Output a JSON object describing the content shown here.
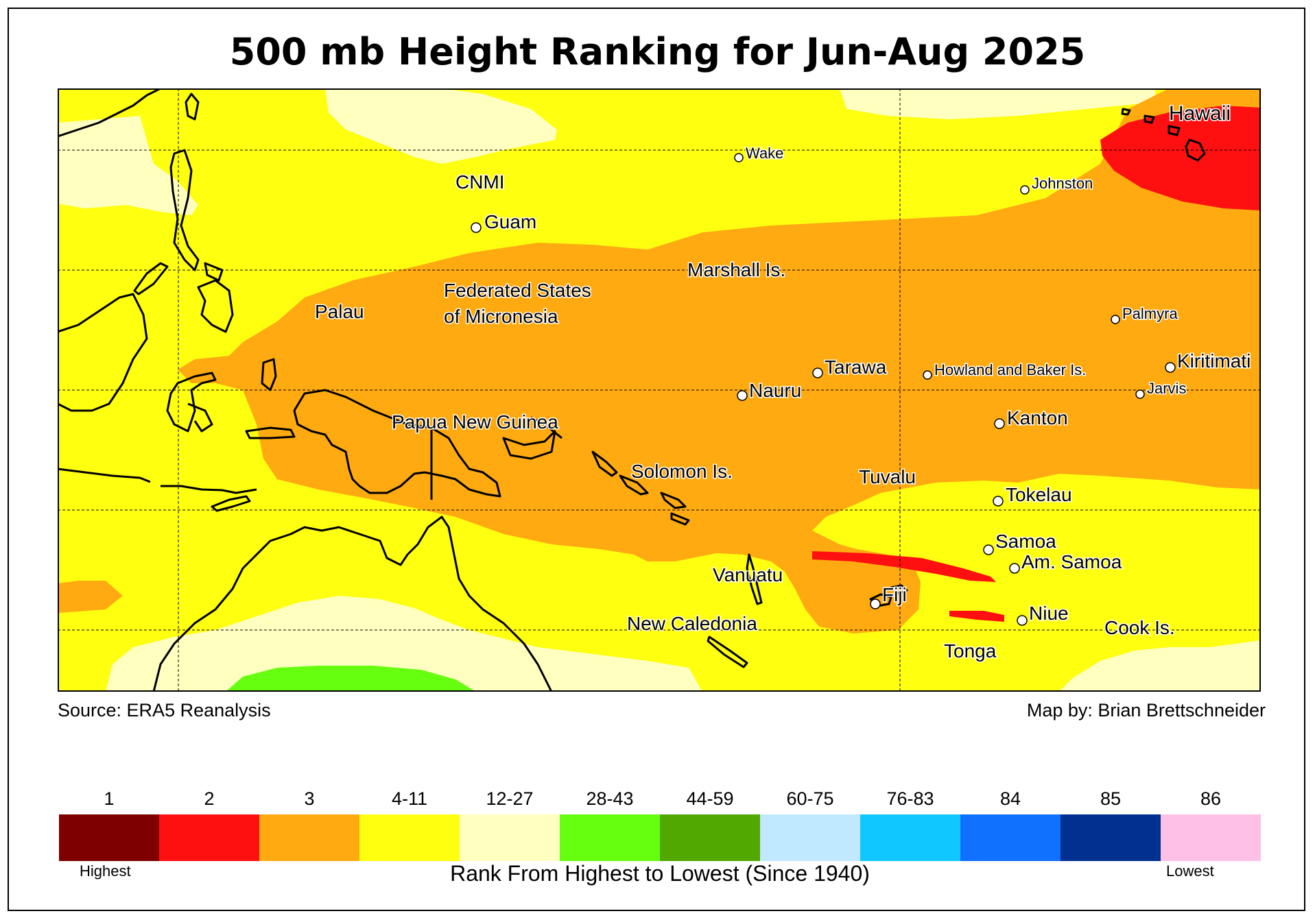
{
  "title": "500 mb Height Ranking for Jun-Aug 2025",
  "source": "Source: ERA5 Reanalysis",
  "credit": "Map by: Brian Brettschneider",
  "legend": {
    "title": "Rank From Highest to Lowest (Since 1940)",
    "highest_label": "Highest",
    "lowest_label": "Lowest",
    "classes": [
      {
        "label": "1",
        "color": "#7f0000"
      },
      {
        "label": "2",
        "color": "#ff1010"
      },
      {
        "label": "3",
        "color": "#ffaa10"
      },
      {
        "label": "4-11",
        "color": "#ffff10"
      },
      {
        "label": "12-27",
        "color": "#ffffc0"
      },
      {
        "label": "28-43",
        "color": "#66ff10"
      },
      {
        "label": "44-59",
        "color": "#50a800"
      },
      {
        "label": "60-75",
        "color": "#c0e8ff"
      },
      {
        "label": "76-83",
        "color": "#10c8ff"
      },
      {
        "label": "84",
        "color": "#1070ff"
      },
      {
        "label": "85",
        "color": "#003090"
      },
      {
        "label": "86",
        "color": "#ffc0e8"
      }
    ]
  },
  "map_labels": {
    "hawaii": "Hawaii",
    "wake": "Wake",
    "johnston": "Johnston",
    "cnmi": "CNMI",
    "guam": "Guam",
    "marshall": "Marshall Is.",
    "fsm_line1": "Federated States",
    "fsm_line2": "of Micronesia",
    "palau": "Palau",
    "palmyra": "Palmyra",
    "kiritimati": "Kiritimati",
    "tarawa": "Tarawa",
    "howland": "Howland and Baker Is.",
    "jarvis": "Jarvis",
    "nauru": "Nauru",
    "png": "Papua New Guinea",
    "kanton": "Kanton",
    "solomon": "Solomon Is.",
    "tuvalu": "Tuvalu",
    "tokelau": "Tokelau",
    "samoa": "Samoa",
    "am_samoa": "Am. Samoa",
    "vanuatu": "Vanuatu",
    "fiji": "Fiji",
    "niue": "Niue",
    "new_caledonia": "New Caledonia",
    "cook": "Cook Is.",
    "tonga": "Tonga"
  }
}
